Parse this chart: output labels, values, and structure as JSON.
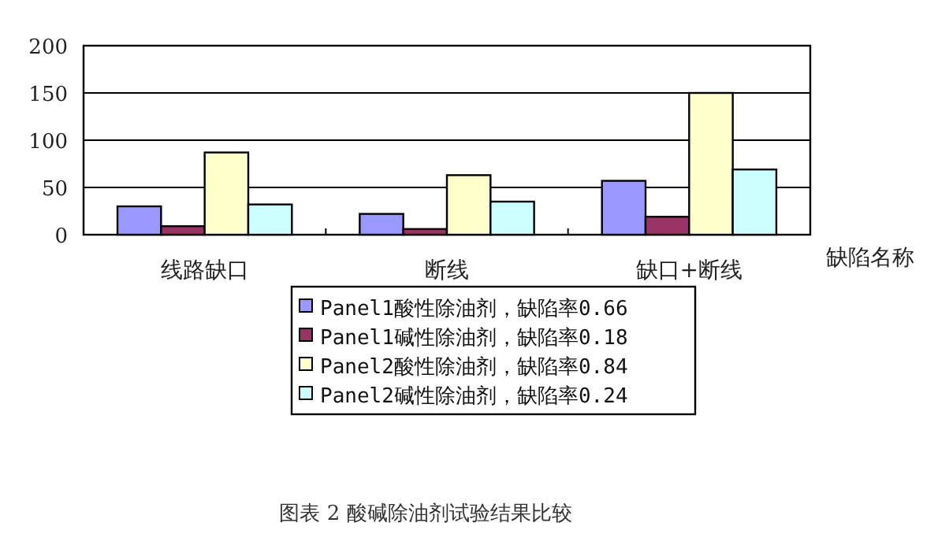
{
  "chart_data": {
    "type": "bar",
    "xlabel": "缺陷名称",
    "categories": [
      "线路缺口",
      "断线",
      "缺口+断线"
    ],
    "series": [
      {
        "name": "Panel1酸性除油剂，缺陷率0.66",
        "color": "#9999ff",
        "values": [
          30,
          22,
          57
        ]
      },
      {
        "name": "Panel1碱性除油剂，缺陷率0.18",
        "color": "#993366",
        "values": [
          9,
          6,
          19
        ]
      },
      {
        "name": "Panel2酸性除油剂，缺陷率0.84",
        "color": "#ffffcc",
        "values": [
          87,
          63,
          150
        ]
      },
      {
        "name": "Panel2碱性除油剂，缺陷率0.24",
        "color": "#ccffff",
        "values": [
          32,
          35,
          69
        ]
      }
    ],
    "ylim": [
      0,
      200
    ],
    "yticks": [
      0,
      50,
      100,
      150,
      200
    ],
    "grid": "y",
    "legend": "bottom",
    "annotations": [
      "图表 2 酸碱除油剂试验结果比较"
    ]
  }
}
